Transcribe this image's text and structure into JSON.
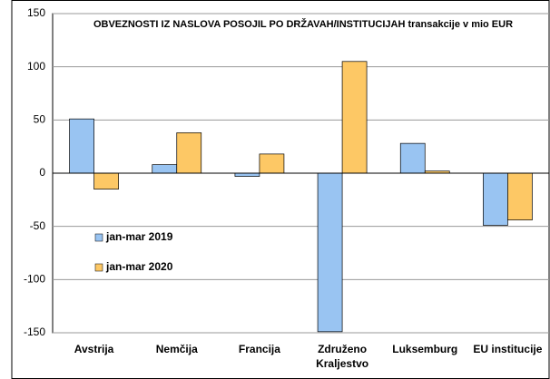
{
  "chart_data": {
    "type": "bar",
    "title": "OBVEZNOSTI IZ NASLOVA POSOJIL PO DRŽAVAH/INSTITUCIJAH transakcije v mio EUR",
    "categories": [
      "Avstrija",
      "Nemčija",
      "Francija",
      "Združeno Kraljestvo",
      "Luksemburg",
      "EU institucije"
    ],
    "series": [
      {
        "name": "jan-mar 2019",
        "color": "#99c4f2",
        "values": [
          51,
          8,
          -3,
          -149,
          28,
          -49
        ]
      },
      {
        "name": "jan-mar 2020",
        "color": "#fdc865",
        "values": [
          -15,
          38,
          18,
          105,
          2,
          -44
        ]
      }
    ],
    "ylim": [
      -150,
      150
    ],
    "yticks": [
      -150,
      -100,
      -50,
      0,
      50,
      100,
      150
    ],
    "grid": true,
    "legend": "left"
  }
}
